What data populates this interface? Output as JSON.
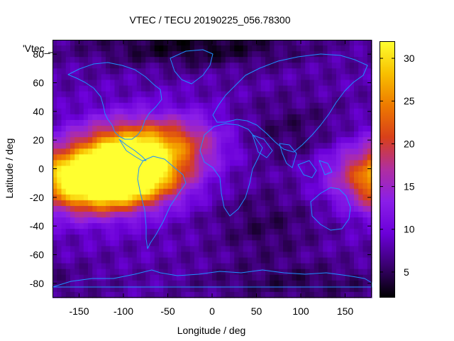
{
  "chart_data": {
    "type": "heatmap",
    "title": "VTEC / TECU 20190225_056.78300",
    "xlabel": "Longitude / deg",
    "ylabel": "Latitude / deg",
    "xlim": [
      -180,
      180
    ],
    "ylim": [
      -90,
      90
    ],
    "x_ticks": [
      -150,
      -100,
      -50,
      0,
      50,
      100,
      150
    ],
    "y_ticks": [
      80,
      60,
      40,
      20,
      0,
      -20,
      -40,
      -60,
      -80
    ],
    "legend": "'Vtec_",
    "colorbar": {
      "label_values": [
        5,
        10,
        15,
        20,
        25,
        30
      ],
      "range": [
        2,
        32
      ],
      "colors": [
        "#000000",
        "#3a0070",
        "#6b00d9",
        "#8a1ee8",
        "#b02ea0",
        "#d8401a",
        "#ee7a00",
        "#f8c000",
        "#ffff30"
      ]
    },
    "background_tecu": 8,
    "features": [
      {
        "name": "equatorial anomaly core (South America)",
        "lon": -90,
        "lat": -5,
        "tecu": 32
      },
      {
        "name": "anomaly west lobe",
        "lon": -140,
        "lat": -12,
        "tecu": 27
      },
      {
        "name": "anomaly northern crest",
        "lon": -100,
        "lat": 15,
        "tecu": 22
      },
      {
        "name": "anomaly extension east",
        "lon": -40,
        "lat": 18,
        "tecu": 18
      },
      {
        "name": "east Pacific edge",
        "lon": 178,
        "lat": 0,
        "tecu": 16
      },
      {
        "name": "night-side trough Asia",
        "lon": 90,
        "lat": 25,
        "tecu": 5
      },
      {
        "name": "night-side trough south Indian Ocean",
        "lon": 60,
        "lat": -40,
        "tecu": 5
      },
      {
        "name": "arctic low",
        "lon": -20,
        "lat": 85,
        "tecu": 3
      },
      {
        "name": "antarctic low",
        "lon": 100,
        "lat": -80,
        "tecu": 5
      }
    ]
  }
}
